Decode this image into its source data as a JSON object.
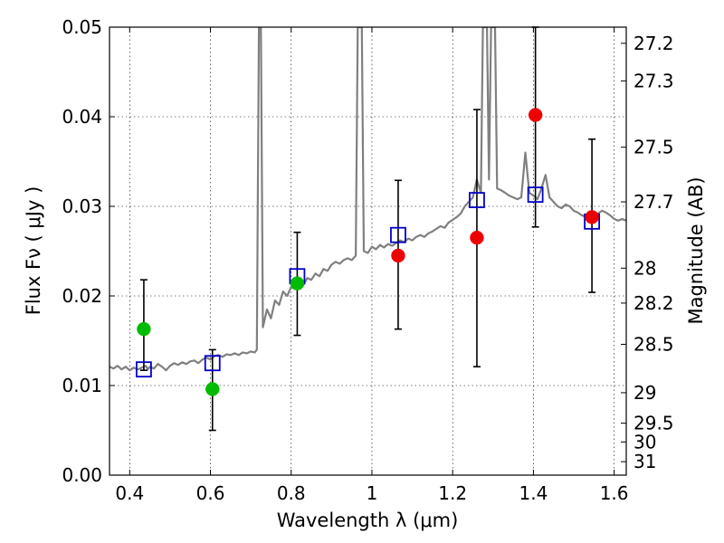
{
  "chart_data": {
    "type": "scatter",
    "title": "",
    "xlabel": "Wavelength  λ (μm)",
    "ylabel": "Flux  Fν  ( μJy )",
    "y2label": "Magnitude (AB)",
    "xlim": [
      0.35,
      1.63
    ],
    "ylim": [
      0.0,
      0.05
    ],
    "grid": true,
    "xticks": [
      "0.4",
      "0.6",
      "0.8",
      "1",
      "1.2",
      "1.4",
      "1.6"
    ],
    "yticks": [
      "0.00",
      "0.01",
      "0.02",
      "0.03",
      "0.04",
      "0.05"
    ],
    "mag_ticks": [
      {
        "label": "27.2",
        "flux": 0.0482
      },
      {
        "label": "27.3",
        "flux": 0.044
      },
      {
        "label": "27.5",
        "flux": 0.0366
      },
      {
        "label": "27.7",
        "flux": 0.0305
      },
      {
        "label": "28",
        "flux": 0.0231
      },
      {
        "label": "28.2",
        "flux": 0.0192
      },
      {
        "label": "28.5",
        "flux": 0.0146
      },
      {
        "label": "29",
        "flux": 0.0092
      },
      {
        "label": "29.5",
        "flux": 0.0058
      },
      {
        "label": "30",
        "flux": 0.0037
      },
      {
        "label": "31",
        "flux": 0.0015
      }
    ],
    "series": [
      {
        "kind": "spectrum",
        "color": "#808080",
        "points": [
          [
            0.35,
            0.0121
          ],
          [
            0.36,
            0.0119
          ],
          [
            0.37,
            0.0122
          ],
          [
            0.38,
            0.0118
          ],
          [
            0.39,
            0.0121
          ],
          [
            0.4,
            0.0117
          ],
          [
            0.41,
            0.012
          ],
          [
            0.42,
            0.0118
          ],
          [
            0.43,
            0.012
          ],
          [
            0.44,
            0.0122
          ],
          [
            0.445,
            0.0118
          ],
          [
            0.45,
            0.0121
          ],
          [
            0.46,
            0.0119
          ],
          [
            0.47,
            0.0124
          ],
          [
            0.48,
            0.0121
          ],
          [
            0.49,
            0.0117
          ],
          [
            0.5,
            0.0122
          ],
          [
            0.51,
            0.0125
          ],
          [
            0.52,
            0.0123
          ],
          [
            0.53,
            0.0126
          ],
          [
            0.54,
            0.0124
          ],
          [
            0.55,
            0.0127
          ],
          [
            0.56,
            0.0128
          ],
          [
            0.57,
            0.0125
          ],
          [
            0.58,
            0.0129
          ],
          [
            0.59,
            0.0131
          ],
          [
            0.6,
            0.0129
          ],
          [
            0.61,
            0.0133
          ],
          [
            0.62,
            0.0134
          ],
          [
            0.63,
            0.0132
          ],
          [
            0.64,
            0.0135
          ],
          [
            0.65,
            0.0134
          ],
          [
            0.66,
            0.0136
          ],
          [
            0.67,
            0.0134
          ],
          [
            0.68,
            0.0137
          ],
          [
            0.69,
            0.0136
          ],
          [
            0.7,
            0.0138
          ],
          [
            0.71,
            0.0137
          ],
          [
            0.715,
            0.014
          ],
          [
            0.72,
            0.05
          ],
          [
            0.725,
            0.05
          ],
          [
            0.73,
            0.0165
          ],
          [
            0.74,
            0.0185
          ],
          [
            0.75,
            0.0175
          ],
          [
            0.76,
            0.0195
          ],
          [
            0.77,
            0.019
          ],
          [
            0.78,
            0.0205
          ],
          [
            0.79,
            0.02
          ],
          [
            0.8,
            0.021
          ],
          [
            0.81,
            0.0208
          ],
          [
            0.82,
            0.0215
          ],
          [
            0.83,
            0.0212
          ],
          [
            0.84,
            0.022
          ],
          [
            0.85,
            0.0218
          ],
          [
            0.86,
            0.0225
          ],
          [
            0.87,
            0.0222
          ],
          [
            0.88,
            0.023
          ],
          [
            0.89,
            0.0228
          ],
          [
            0.9,
            0.0235
          ],
          [
            0.91,
            0.0238
          ],
          [
            0.92,
            0.0236
          ],
          [
            0.93,
            0.024
          ],
          [
            0.94,
            0.0242
          ],
          [
            0.95,
            0.024
          ],
          [
            0.96,
            0.0245
          ],
          [
            0.965,
            0.05
          ],
          [
            0.975,
            0.05
          ],
          [
            0.98,
            0.025
          ],
          [
            0.99,
            0.0248
          ],
          [
            1.0,
            0.0255
          ],
          [
            1.01,
            0.0252
          ],
          [
            1.02,
            0.0257
          ],
          [
            1.03,
            0.0254
          ],
          [
            1.04,
            0.0258
          ],
          [
            1.05,
            0.0256
          ],
          [
            1.06,
            0.0259
          ],
          [
            1.07,
            0.0262
          ],
          [
            1.08,
            0.026
          ],
          [
            1.09,
            0.0264
          ],
          [
            1.1,
            0.0262
          ],
          [
            1.11,
            0.0266
          ],
          [
            1.12,
            0.0268
          ],
          [
            1.13,
            0.0266
          ],
          [
            1.14,
            0.027
          ],
          [
            1.15,
            0.0272
          ],
          [
            1.16,
            0.0275
          ],
          [
            1.17,
            0.0278
          ],
          [
            1.18,
            0.0276
          ],
          [
            1.19,
            0.0282
          ],
          [
            1.2,
            0.0285
          ],
          [
            1.21,
            0.0288
          ],
          [
            1.22,
            0.0292
          ],
          [
            1.23,
            0.03
          ],
          [
            1.24,
            0.0305
          ],
          [
            1.25,
            0.031
          ],
          [
            1.26,
            0.033
          ],
          [
            1.27,
            0.0315
          ],
          [
            1.275,
            0.05
          ],
          [
            1.285,
            0.05
          ],
          [
            1.29,
            0.033
          ],
          [
            1.295,
            0.05
          ],
          [
            1.305,
            0.05
          ],
          [
            1.31,
            0.032
          ],
          [
            1.32,
            0.0318
          ],
          [
            1.33,
            0.0315
          ],
          [
            1.34,
            0.0312
          ],
          [
            1.35,
            0.031
          ],
          [
            1.36,
            0.0308
          ],
          [
            1.37,
            0.031
          ],
          [
            1.38,
            0.036
          ],
          [
            1.39,
            0.0315
          ],
          [
            1.4,
            0.0312
          ],
          [
            1.41,
            0.0308
          ],
          [
            1.42,
            0.032
          ],
          [
            1.43,
            0.0335
          ],
          [
            1.44,
            0.031
          ],
          [
            1.45,
            0.0305
          ],
          [
            1.46,
            0.03
          ],
          [
            1.47,
            0.0298
          ],
          [
            1.48,
            0.0302
          ],
          [
            1.49,
            0.03
          ],
          [
            1.5,
            0.0295
          ],
          [
            1.51,
            0.0293
          ],
          [
            1.52,
            0.029
          ],
          [
            1.53,
            0.0288
          ],
          [
            1.54,
            0.0285
          ],
          [
            1.55,
            0.029
          ],
          [
            1.56,
            0.0292
          ],
          [
            1.57,
            0.0295
          ],
          [
            1.58,
            0.0293
          ],
          [
            1.59,
            0.029
          ],
          [
            1.6,
            0.0286
          ],
          [
            1.61,
            0.0284
          ],
          [
            1.62,
            0.0286
          ],
          [
            1.63,
            0.0284
          ]
        ]
      },
      {
        "kind": "model-photometry",
        "marker": "open-square",
        "color": "#0000cc",
        "points": [
          [
            0.435,
            0.0118
          ],
          [
            0.605,
            0.0125
          ],
          [
            0.815,
            0.0222
          ],
          [
            1.065,
            0.0268
          ],
          [
            1.26,
            0.0307
          ],
          [
            1.405,
            0.0313
          ],
          [
            1.545,
            0.0283
          ]
        ]
      },
      {
        "kind": "observed-photometry-optical",
        "marker": "filled-circle",
        "color": "#00bb00",
        "points": [
          [
            0.435,
            0.0163
          ],
          [
            0.605,
            0.0096
          ],
          [
            0.815,
            0.0214
          ]
        ]
      },
      {
        "kind": "observed-photometry-nir",
        "marker": "filled-circle",
        "color": "#ee0000",
        "points": [
          [
            1.065,
            0.0245
          ],
          [
            1.26,
            0.0265
          ],
          [
            1.405,
            0.0402
          ],
          [
            1.545,
            0.0288
          ]
        ]
      },
      {
        "kind": "error-bars",
        "color": "#000000",
        "bars": [
          {
            "x": 0.435,
            "low": 0.0117,
            "high": 0.0218
          },
          {
            "x": 0.605,
            "low": 0.005,
            "high": 0.014
          },
          {
            "x": 0.815,
            "low": 0.0156,
            "high": 0.0271
          },
          {
            "x": 1.065,
            "low": 0.0163,
            "high": 0.0329
          },
          {
            "x": 1.26,
            "low": 0.0121,
            "high": 0.0408
          },
          {
            "x": 1.405,
            "low": 0.0277,
            "high": 0.05
          },
          {
            "x": 1.545,
            "low": 0.0204,
            "high": 0.0375
          }
        ]
      }
    ]
  }
}
